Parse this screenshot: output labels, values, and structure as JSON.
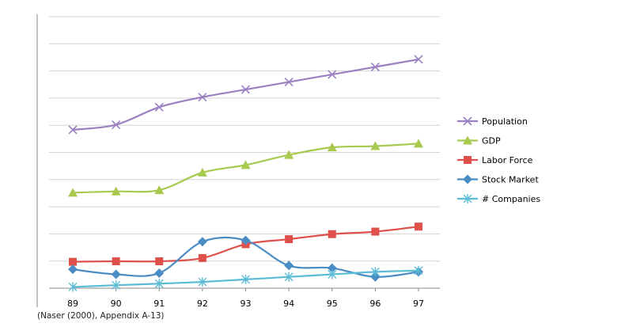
{
  "chart_data": {
    "type": "line",
    "categories": [
      "89",
      "90",
      "91",
      "92",
      "93",
      "94",
      "95",
      "96",
      "97"
    ],
    "ylim": [
      0,
      10.8
    ],
    "grid": true,
    "legend_position": "right",
    "series": [
      {
        "name": "Population",
        "color": "#9b80c2",
        "marker": "x",
        "values": [
          6.3,
          6.5,
          7.2,
          7.6,
          7.9,
          8.2,
          8.5,
          8.8,
          9.1
        ]
      },
      {
        "name": "GDP",
        "color": "#a6c94e",
        "marker": "triangle",
        "values": [
          3.8,
          3.85,
          3.9,
          4.6,
          4.9,
          5.3,
          5.6,
          5.65,
          5.75
        ]
      },
      {
        "name": "Labor Force",
        "color": "#e0504a",
        "marker": "square",
        "values": [
          1.05,
          1.07,
          1.07,
          1.2,
          1.75,
          1.95,
          2.15,
          2.25,
          2.45
        ]
      },
      {
        "name": "Stock Market",
        "color": "#4a8cc4",
        "marker": "diamond",
        "values": [
          0.75,
          0.55,
          0.6,
          1.85,
          1.9,
          0.9,
          0.8,
          0.45,
          0.65
        ]
      },
      {
        "name": "# Companies",
        "color": "#5bbcd6",
        "marker": "star",
        "values": [
          0.05,
          0.12,
          0.18,
          0.25,
          0.35,
          0.45,
          0.55,
          0.65,
          0.7
        ]
      }
    ]
  },
  "source_note": "(Naser (2000), Appendix A-13)"
}
